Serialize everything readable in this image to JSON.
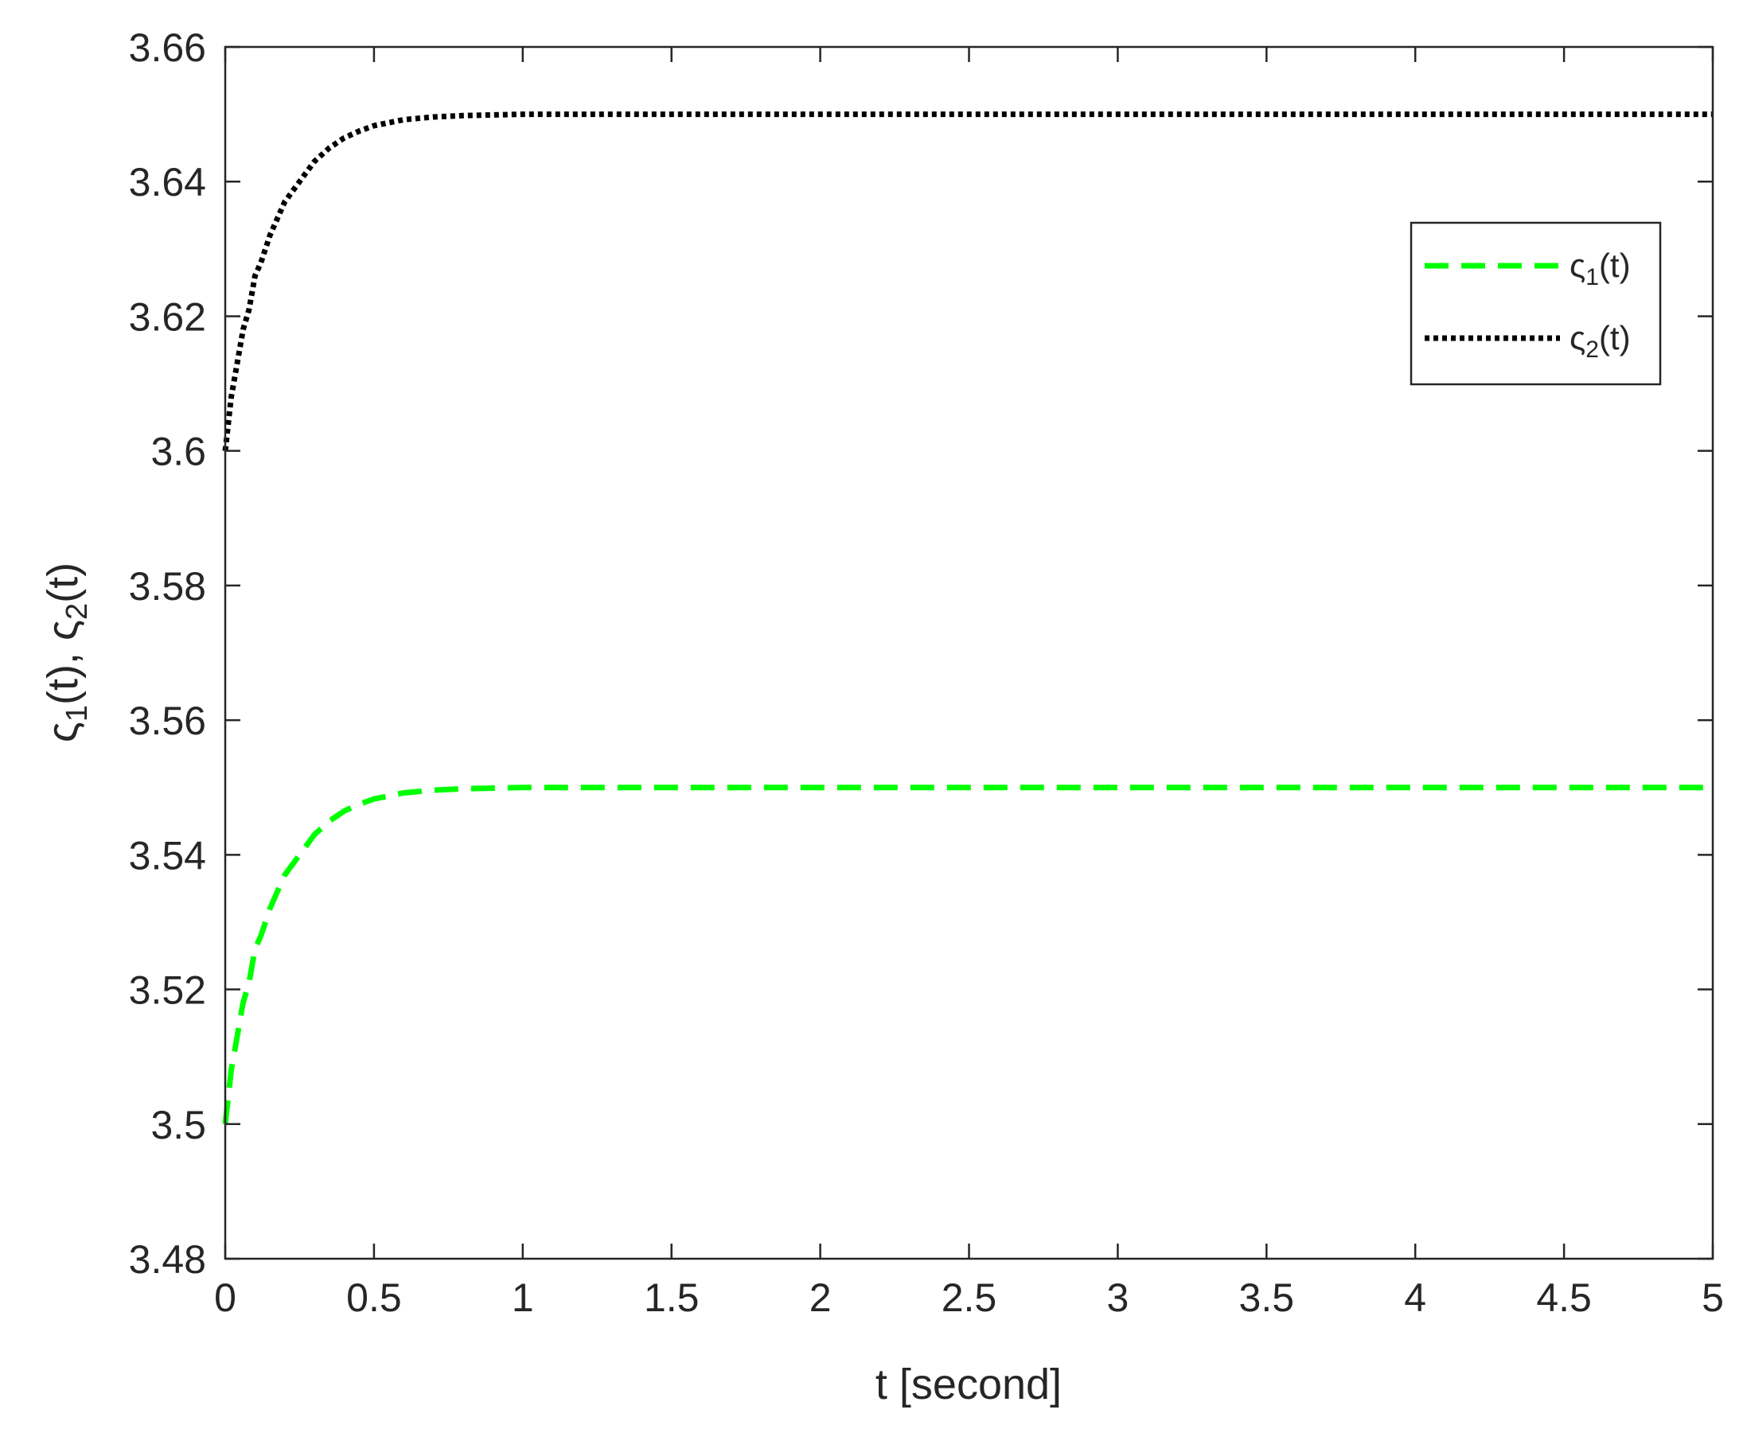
{
  "chart_data": {
    "type": "line",
    "title": "",
    "xlabel": "t  [second]",
    "ylabel": {
      "parts": [
        "ς",
        "1",
        "(t),  ς",
        "2",
        "(t)"
      ]
    },
    "xlim": [
      0,
      5
    ],
    "ylim": [
      3.48,
      3.66
    ],
    "xticks": [
      0,
      0.5,
      1,
      1.5,
      2,
      2.5,
      3,
      3.5,
      4,
      4.5,
      5
    ],
    "xtick_labels": [
      "0",
      "0.5",
      "1",
      "1.5",
      "2",
      "2.5",
      "3",
      "3.5",
      "4",
      "4.5",
      "5"
    ],
    "yticks": [
      3.48,
      3.5,
      3.52,
      3.54,
      3.56,
      3.58,
      3.6,
      3.62,
      3.64,
      3.66
    ],
    "ytick_labels": [
      "3.48",
      "3.5",
      "3.52",
      "3.54",
      "3.56",
      "3.58",
      "3.6",
      "3.62",
      "3.64",
      "3.66"
    ],
    "grid": false,
    "legend": {
      "placement": "top-right",
      "entries": [
        {
          "parts": [
            "ς",
            "1",
            "(t)"
          ]
        },
        {
          "parts": [
            "ς",
            "2",
            "(t)"
          ]
        }
      ]
    },
    "series": [
      {
        "style": "dashed",
        "color": "#00ff00",
        "x": [
          0,
          0.02,
          0.04,
          0.06,
          0.08,
          0.1,
          0.12,
          0.15,
          0.18,
          0.2,
          0.25,
          0.3,
          0.35,
          0.4,
          0.45,
          0.5,
          0.6,
          0.7,
          0.8,
          1.0,
          1.5,
          2,
          3,
          4,
          5
        ],
        "values": [
          3.5,
          3.508,
          3.513,
          3.518,
          3.521,
          3.526,
          3.528,
          3.532,
          3.535,
          3.537,
          3.54,
          3.543,
          3.545,
          3.5465,
          3.5475,
          3.5483,
          3.5492,
          3.5496,
          3.5498,
          3.55,
          3.55,
          3.55,
          3.55,
          3.55,
          3.55
        ]
      },
      {
        "style": "dotted",
        "color": "#000000",
        "x": [
          0,
          0.02,
          0.04,
          0.06,
          0.08,
          0.1,
          0.12,
          0.15,
          0.18,
          0.2,
          0.25,
          0.3,
          0.35,
          0.4,
          0.45,
          0.5,
          0.6,
          0.7,
          0.8,
          1.0,
          1.5,
          2,
          3,
          4,
          5
        ],
        "values": [
          3.6,
          3.608,
          3.613,
          3.618,
          3.621,
          3.626,
          3.628,
          3.632,
          3.635,
          3.637,
          3.64,
          3.643,
          3.645,
          3.6465,
          3.6475,
          3.6483,
          3.6492,
          3.6496,
          3.6498,
          3.65,
          3.65,
          3.65,
          3.65,
          3.65,
          3.65
        ]
      }
    ]
  }
}
